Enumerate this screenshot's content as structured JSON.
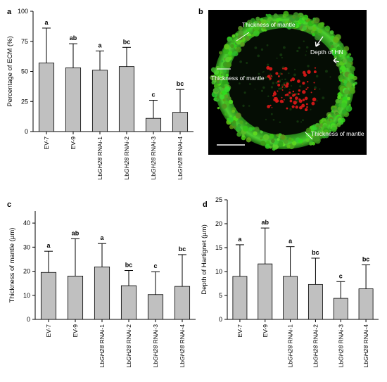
{
  "panels": {
    "a": "a",
    "b": "b",
    "c": "c",
    "d": "d"
  },
  "micrograph": {
    "label_mantle_top": "Thickness of mantle",
    "label_mantle_left": "Thickness of mantle",
    "label_mantle_bottom": "Thickness of mantle",
    "label_hn": "Depth of HN",
    "colors": {
      "background": "#000000",
      "mantle": "#3fbf2a",
      "hartig_net": "#e01818"
    }
  },
  "colors": {
    "bar_fill": "#c0c0c0",
    "bar_stroke": "#000000"
  },
  "chart_data": [
    {
      "type": "bar",
      "panel": "a",
      "categories": [
        [
          {
            "t": "EV-7"
          }
        ],
        [
          {
            "t": "EV-9"
          }
        ],
        [
          {
            "t": "Lb"
          },
          {
            "t": "GH28",
            "i": true
          },
          {
            "t": " RNAi-1"
          }
        ],
        [
          {
            "t": "Lb"
          },
          {
            "t": "GH28",
            "i": true
          },
          {
            "t": " RNAi-2"
          }
        ],
        [
          {
            "t": "Lb"
          },
          {
            "t": "GH28",
            "i": true
          },
          {
            "t": " RNAi-3"
          }
        ],
        [
          {
            "t": "Lb"
          },
          {
            "t": "GH28",
            "i": true
          },
          {
            "t": " RNAi-4"
          }
        ]
      ],
      "values": [
        57,
        53,
        51,
        54,
        11,
        16
      ],
      "errors": [
        29,
        20,
        16,
        16,
        15,
        19
      ],
      "letters": [
        "a",
        "ab",
        "a",
        "bc",
        "c",
        "bc"
      ],
      "ylabel": "Percentage of ECM (%)",
      "ylim": [
        0,
        100
      ],
      "yticks": [
        0,
        25,
        50,
        75,
        100
      ],
      "grid": false
    },
    {
      "type": "bar",
      "panel": "c",
      "categories": [
        [
          {
            "t": "EV-7"
          }
        ],
        [
          {
            "t": "EV-9"
          }
        ],
        [
          {
            "t": "Lb"
          },
          {
            "t": "GH28",
            "i": true
          },
          {
            "t": " RNAi-1"
          }
        ],
        [
          {
            "t": "Lb"
          },
          {
            "t": "GH28",
            "i": true
          },
          {
            "t": " RNAi-2"
          }
        ],
        [
          {
            "t": "Lb"
          },
          {
            "t": "GH28",
            "i": true
          },
          {
            "t": " RNAi-3"
          }
        ],
        [
          {
            "t": "Lb"
          },
          {
            "t": "GH28",
            "i": true
          },
          {
            "t": " RNAi-4"
          }
        ]
      ],
      "values": [
        19.5,
        18.0,
        21.8,
        14.0,
        10.3,
        13.7
      ],
      "errors": [
        8.8,
        15.5,
        9.7,
        6.3,
        9.5,
        13.2
      ],
      "letters": [
        "a",
        "ab",
        "a",
        "bc",
        "c",
        "bc"
      ],
      "ylabel": "Thickness of mantle (µm)",
      "ylim": [
        0,
        45
      ],
      "yticks": [
        0,
        10,
        20,
        30,
        40
      ],
      "grid": false
    },
    {
      "type": "bar",
      "panel": "d",
      "categories": [
        [
          {
            "t": "EV-7"
          }
        ],
        [
          {
            "t": "EV-9"
          }
        ],
        [
          {
            "t": "Lb"
          },
          {
            "t": "GH28",
            "i": true
          },
          {
            "t": " RNAi-1"
          }
        ],
        [
          {
            "t": "Lb"
          },
          {
            "t": "GH28",
            "i": true
          },
          {
            "t": " RNAi-2"
          }
        ],
        [
          {
            "t": "Lb"
          },
          {
            "t": "GH28",
            "i": true
          },
          {
            "t": " RNAi-3"
          }
        ],
        [
          {
            "t": "Lb"
          },
          {
            "t": "GH28",
            "i": true
          },
          {
            "t": " RNAi-4"
          }
        ]
      ],
      "values": [
        9.0,
        11.6,
        9.0,
        7.3,
        4.4,
        6.4
      ],
      "errors": [
        6.6,
        7.5,
        6.2,
        5.5,
        3.5,
        5.0
      ],
      "letters": [
        "a",
        "ab",
        "a",
        "bc",
        "c",
        "bc"
      ],
      "ylabel": "Depth of Hartignet (µm)",
      "ylim": [
        0,
        25
      ],
      "yticks": [
        0,
        5,
        10,
        15,
        20,
        25
      ],
      "grid": false
    }
  ]
}
